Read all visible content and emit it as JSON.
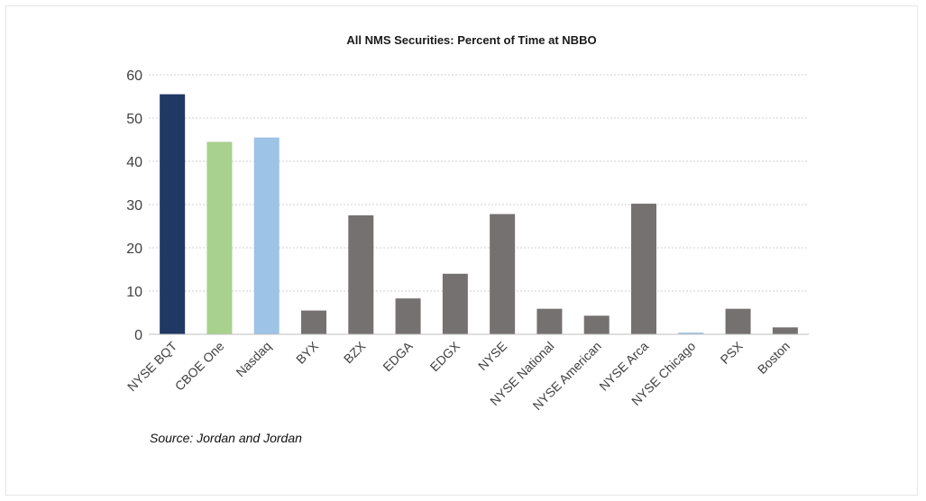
{
  "chart_data": {
    "type": "bar",
    "title": "All NMS Securities: Percent of Time at NBBO",
    "xlabel": "",
    "ylabel": "",
    "ylim": [
      0,
      60
    ],
    "yticks": [
      0,
      10,
      20,
      30,
      40,
      50,
      60
    ],
    "grid": true,
    "categories": [
      "NYSE BQT",
      "CBOE One",
      "Nasdaq",
      "BYX",
      "BZX",
      "EDGA",
      "EDGX",
      "NYSE",
      "NYSE National",
      "NYSE American",
      "NYSE Arca",
      "NYSE Chicago",
      "PSX",
      "Boston"
    ],
    "values": [
      55.5,
      44.5,
      45.5,
      5.5,
      27.5,
      8.3,
      14.0,
      27.8,
      5.9,
      4.3,
      30.2,
      0.4,
      5.9,
      1.6
    ],
    "colors": [
      "#1f3864",
      "#a9d18e",
      "#9dc3e6",
      "#767171",
      "#767171",
      "#767171",
      "#767171",
      "#767171",
      "#767171",
      "#767171",
      "#767171",
      "#9dc3e6",
      "#767171",
      "#767171"
    ]
  },
  "source_note": "Source:  Jordan and Jordan"
}
